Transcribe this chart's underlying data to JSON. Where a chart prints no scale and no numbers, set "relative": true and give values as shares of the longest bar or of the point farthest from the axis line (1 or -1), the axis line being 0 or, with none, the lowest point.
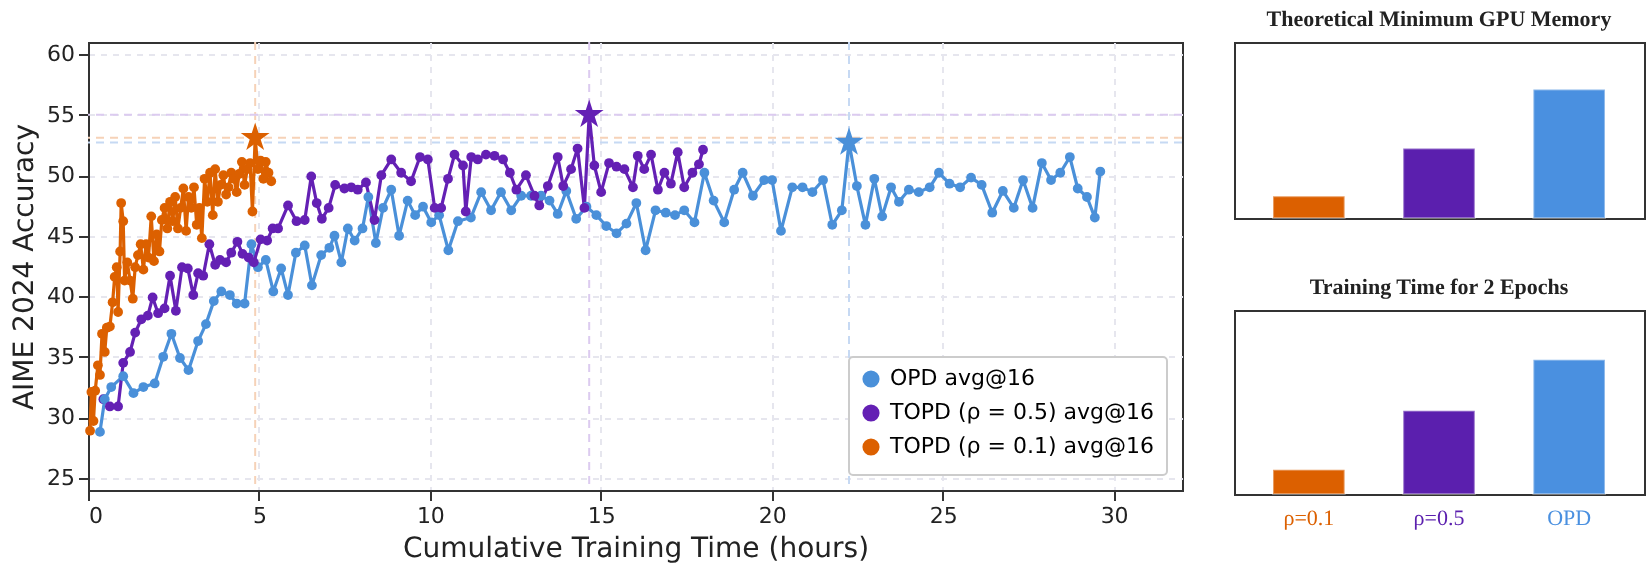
{
  "chart_data": [
    {
      "type": "line",
      "xlabel": "Cumulative Training Time (hours)",
      "ylabel": "AIME 2024 Accuracy",
      "xlim": [
        0,
        32
      ],
      "ylim": [
        24,
        61
      ],
      "xticks": [
        0,
        5,
        10,
        15,
        20,
        25,
        30
      ],
      "yticks": [
        25,
        30,
        35,
        40,
        45,
        50,
        55,
        60
      ],
      "grid": true,
      "legend": "bottom right",
      "marker": "circle",
      "series": [
        {
          "name": "OPD avg@16",
          "color": "#4a90d9",
          "x": [
            0.35,
            0.49,
            0.68,
            1.03,
            1.33,
            1.62,
            1.95,
            2.2,
            2.44,
            2.69,
            2.94,
            3.22,
            3.45,
            3.68,
            3.9,
            4.15,
            4.35,
            4.58,
            4.78,
            4.97,
            5.2,
            5.42,
            5.65,
            5.85,
            6.08,
            6.34,
            6.55,
            6.82,
            7.06,
            7.21,
            7.41,
            7.6,
            7.8,
            8.03,
            8.2,
            8.42,
            8.63,
            8.87,
            9.1,
            9.35,
            9.57,
            9.8,
            10.04,
            10.27,
            10.54,
            10.82,
            11.2,
            11.5,
            11.79,
            12.08,
            12.38,
            12.67,
            12.96,
            13.25,
            13.5,
            13.74,
            13.99,
            14.28,
            14.58,
            14.87,
            15.16,
            15.46,
            15.75,
            16.04,
            16.31,
            16.6,
            16.9,
            17.17,
            17.44,
            17.74,
            18.03,
            18.3,
            18.61,
            18.9,
            19.15,
            19.45,
            19.78,
            20.01,
            20.27,
            20.6,
            20.9,
            21.19,
            21.5,
            21.77,
            22.05,
            22.26,
            22.49,
            22.74,
            23.0,
            23.23,
            23.49,
            23.72,
            24.01,
            24.3,
            24.62,
            24.89,
            25.2,
            25.51,
            25.83,
            26.14,
            26.45,
            26.76,
            27.08,
            27.35,
            27.63,
            27.9,
            28.17,
            28.44,
            28.72,
            28.95,
            29.22,
            29.45,
            29.61
          ],
          "values": [
            28.8,
            31.5,
            32.5,
            33.4,
            32.0,
            32.5,
            32.8,
            35.0,
            36.9,
            34.9,
            33.9,
            36.3,
            37.7,
            39.6,
            40.4,
            40.1,
            39.4,
            39.4,
            44.3,
            42.4,
            43.0,
            40.4,
            42.3,
            40.1,
            43.6,
            44.2,
            40.9,
            43.4,
            44.0,
            45.0,
            42.8,
            45.6,
            44.6,
            45.6,
            48.2,
            44.4,
            47.3,
            48.8,
            45.0,
            47.9,
            46.7,
            47.4,
            46.1,
            46.7,
            43.8,
            46.2,
            46.5,
            48.6,
            47.1,
            48.6,
            47.1,
            48.3,
            48.3,
            48.3,
            47.9,
            46.8,
            48.7,
            46.4,
            47.4,
            46.7,
            45.8,
            45.2,
            46.0,
            47.7,
            43.8,
            47.1,
            46.9,
            46.7,
            47.1,
            46.1,
            50.2,
            47.9,
            46.1,
            48.8,
            50.2,
            48.3,
            49.6,
            49.6,
            45.4,
            49.0,
            49.0,
            48.6,
            49.6,
            45.9,
            47.1,
            52.7,
            49.1,
            45.9,
            49.7,
            46.6,
            49.0,
            47.8,
            48.8,
            48.6,
            49.0,
            50.2,
            49.3,
            49.0,
            49.8,
            49.2,
            46.9,
            48.7,
            47.3,
            49.6,
            47.3,
            51.0,
            49.6,
            50.2,
            51.5,
            48.9,
            48.2,
            46.5,
            50.3
          ]
        },
        {
          "name": "TOPD (ρ = 0.5) avg@16",
          "color": "#6420b4",
          "x": [
            0.45,
            0.64,
            0.88,
            1.03,
            1.23,
            1.38,
            1.56,
            1.75,
            1.89,
            2.05,
            2.24,
            2.4,
            2.57,
            2.75,
            2.92,
            3.08,
            3.22,
            3.37,
            3.55,
            3.72,
            3.86,
            4.04,
            4.19,
            4.37,
            4.52,
            4.7,
            4.85,
            5.05,
            5.24,
            5.4,
            5.56,
            5.85,
            6.1,
            6.34,
            6.53,
            6.69,
            6.84,
            7.04,
            7.23,
            7.5,
            7.7,
            7.89,
            8.13,
            8.38,
            8.58,
            8.87,
            9.16,
            9.45,
            9.71,
            9.94,
            10.14,
            10.33,
            10.53,
            10.72,
            10.97,
            11.05,
            11.21,
            11.4,
            11.64,
            11.89,
            12.14,
            12.34,
            12.53,
            12.81,
            13.06,
            13.2,
            13.45,
            13.74,
            13.9,
            14.13,
            14.32,
            14.52,
            14.66,
            14.81,
            15.01,
            15.24,
            15.46,
            15.69,
            15.94,
            16.08,
            16.27,
            16.47,
            16.67,
            16.86,
            17.05,
            17.25,
            17.44,
            17.68,
            17.87,
            17.99
          ],
          "values": [
            31.5,
            30.9,
            30.9,
            34.5,
            35.4,
            37.0,
            38.1,
            38.4,
            39.9,
            38.6,
            39.0,
            41.7,
            38.8,
            42.4,
            42.3,
            40.1,
            41.9,
            41.7,
            44.3,
            42.6,
            43.0,
            42.8,
            43.6,
            44.5,
            43.5,
            43.2,
            42.8,
            44.7,
            44.6,
            45.6,
            45.6,
            47.5,
            46.2,
            46.3,
            49.9,
            47.7,
            46.4,
            47.3,
            49.2,
            48.9,
            49.0,
            48.8,
            49.4,
            46.3,
            50.0,
            51.3,
            50.2,
            49.5,
            51.5,
            51.3,
            47.3,
            47.3,
            49.7,
            51.7,
            50.8,
            47.0,
            51.5,
            51.3,
            51.7,
            51.6,
            51.3,
            50.2,
            48.8,
            50.0,
            48.3,
            47.5,
            49.1,
            51.5,
            49.1,
            50.5,
            52.2,
            47.3,
            55.0,
            50.8,
            48.6,
            51.0,
            50.7,
            50.5,
            49.0,
            51.6,
            50.5,
            51.7,
            48.8,
            50.2,
            49.3,
            51.9,
            49.0,
            50.2,
            50.9,
            52.1
          ]
        },
        {
          "name": "TOPD (ρ = 0.1) avg@16",
          "color": "#dc6000",
          "x": [
            0.06,
            0.1,
            0.16,
            0.21,
            0.29,
            0.35,
            0.41,
            0.49,
            0.55,
            0.64,
            0.72,
            0.78,
            0.84,
            0.88,
            0.94,
            0.97,
            1.03,
            1.07,
            1.15,
            1.23,
            1.31,
            1.38,
            1.46,
            1.54,
            1.62,
            1.7,
            1.77,
            1.85,
            1.93,
            2.01,
            2.09,
            2.16,
            2.24,
            2.32,
            2.4,
            2.48,
            2.55,
            2.63,
            2.71,
            2.79,
            2.87,
            2.94,
            3.02,
            3.1,
            3.18,
            3.26,
            3.33,
            3.41,
            3.49,
            3.57,
            3.65,
            3.72,
            3.8,
            3.88,
            3.96,
            4.04,
            4.11,
            4.19,
            4.27,
            4.35,
            4.42,
            4.5,
            4.58,
            4.66,
            4.74,
            4.81,
            4.89,
            4.97,
            5.05,
            5.13,
            5.2,
            5.28,
            5.36
          ],
          "values": [
            28.9,
            32.1,
            29.7,
            32.2,
            34.3,
            33.5,
            36.9,
            35.4,
            37.4,
            37.5,
            39.5,
            41.6,
            42.4,
            38.7,
            43.7,
            47.7,
            46.2,
            41.3,
            42.8,
            41.3,
            39.8,
            42.4,
            43.4,
            44.3,
            42.2,
            44.3,
            43.2,
            46.6,
            42.9,
            45.1,
            43.7,
            46.3,
            47.3,
            45.6,
            47.8,
            46.2,
            48.2,
            45.6,
            47.3,
            48.9,
            45.4,
            48.2,
            47.3,
            49.0,
            45.9,
            47.3,
            44.8,
            49.7,
            47.8,
            50.2,
            46.7,
            50.5,
            47.8,
            49.2,
            50.0,
            48.4,
            49.0,
            50.2,
            49.7,
            48.6,
            50.1,
            51.1,
            49.2,
            50.5,
            51.0,
            47.0,
            53.1,
            50.5,
            51.2,
            49.7,
            51.1,
            50.2,
            49.5
          ]
        },
        {
          "type": "scatter",
          "marker": "star",
          "color": "#4a90d9",
          "x": [
            22.26
          ],
          "values": [
            52.7
          ]
        },
        {
          "type": "scatter",
          "marker": "star",
          "color": "#6420b4",
          "x": [
            14.66
          ],
          "values": [
            55.0
          ]
        },
        {
          "type": "scatter",
          "marker": "star",
          "color": "#dc6000",
          "x": [
            4.89
          ],
          "values": [
            53.1
          ]
        }
      ],
      "ref_lines": [
        {
          "axis": "x",
          "value": 22.26,
          "color": "#c6d9f3",
          "line_style": "dashed"
        },
        {
          "axis": "x",
          "value": 14.66,
          "color": "#dccbf0",
          "line_style": "dashed"
        },
        {
          "axis": "x",
          "value": 4.89,
          "color": "#f6d2b8",
          "line_style": "dashed"
        },
        {
          "axis": "y",
          "value": 52.7,
          "color": "#c6d9f3",
          "line_style": "dashed"
        },
        {
          "axis": "y",
          "value": 55.0,
          "color": "#dccbf0",
          "line_style": "dashed"
        },
        {
          "axis": "y",
          "value": 53.1,
          "color": "#f6d2b8",
          "line_style": "dashed"
        }
      ]
    },
    {
      "type": "bar",
      "title": "Theoretical Minimum GPU Memory",
      "relative": true,
      "categories": [
        null,
        null,
        null
      ],
      "values": [
        0.17,
        0.54,
        1
      ],
      "colors": [
        "#dc6000",
        "#5b1fae",
        "#4a90e0"
      ]
    },
    {
      "type": "bar",
      "title": "Training Time for 2 Epochs",
      "relative": true,
      "categories": [
        "ρ=0.1",
        "ρ=0.5",
        "OPD"
      ],
      "values": [
        0.18,
        0.62,
        1
      ],
      "colors": [
        "#dc6000",
        "#5b1fae",
        "#4a90e0"
      ]
    }
  ]
}
